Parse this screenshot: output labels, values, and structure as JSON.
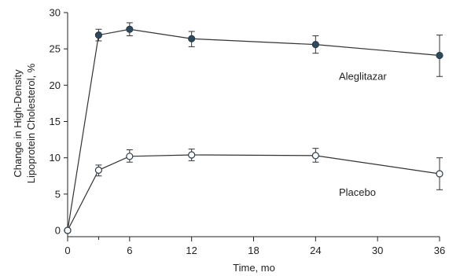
{
  "chart_data": {
    "type": "line",
    "xlabel": "Time, mo",
    "ylabel_lines": [
      "Change in High-Density",
      "Lipoprotein Cholesterol, %"
    ],
    "xlim": [
      0,
      36
    ],
    "ylim": [
      0,
      30
    ],
    "xticks": [
      0,
      6,
      12,
      18,
      24,
      30,
      36
    ],
    "yticks": [
      0,
      5,
      10,
      15,
      20,
      25,
      30
    ],
    "minor_xticks": [
      3
    ],
    "grid": false,
    "series": [
      {
        "name": "Aleglitazar",
        "marker": "filled-circle",
        "color": "#2c4a5e",
        "points": [
          {
            "x": 0,
            "y": 0,
            "lo": 0,
            "hi": 0
          },
          {
            "x": 3,
            "y": 26.9,
            "lo": 26.1,
            "hi": 27.7
          },
          {
            "x": 6,
            "y": 27.7,
            "lo": 26.8,
            "hi": 28.6
          },
          {
            "x": 12,
            "y": 26.4,
            "lo": 25.3,
            "hi": 27.4
          },
          {
            "x": 24,
            "y": 25.6,
            "lo": 24.4,
            "hi": 26.8
          },
          {
            "x": 36,
            "y": 24.1,
            "lo": 21.2,
            "hi": 26.9
          }
        ]
      },
      {
        "name": "Placebo",
        "marker": "open-circle",
        "color": "#ffffff",
        "points": [
          {
            "x": 0,
            "y": 0,
            "lo": 0,
            "hi": 0
          },
          {
            "x": 3,
            "y": 8.3,
            "lo": 7.5,
            "hi": 9.0
          },
          {
            "x": 6,
            "y": 10.2,
            "lo": 9.4,
            "hi": 11.1
          },
          {
            "x": 12,
            "y": 10.4,
            "lo": 9.6,
            "hi": 11.2
          },
          {
            "x": 24,
            "y": 10.3,
            "lo": 9.4,
            "hi": 11.3
          },
          {
            "x": 36,
            "y": 7.8,
            "lo": 5.6,
            "hi": 10.0
          }
        ]
      }
    ]
  }
}
